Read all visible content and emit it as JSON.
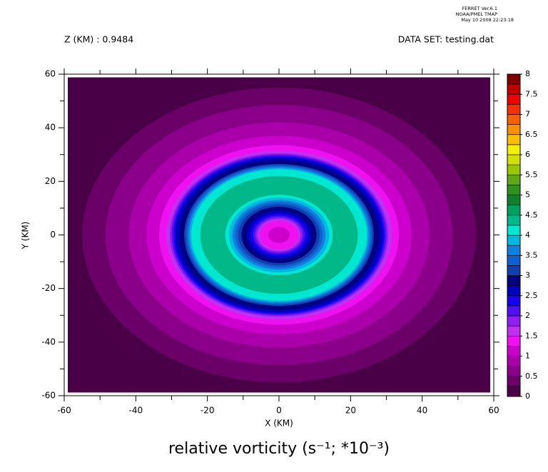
{
  "chart_data": {
    "type": "contour",
    "header": [
      "FERRET  Ver.6.1",
      "NOAA/PMEL TMAP",
      "May 10 2008 22:23:18"
    ],
    "subtitle_left": "Z (KM) : 0.9484",
    "subtitle_right": "DATA SET: testing.dat",
    "title": "relative vorticity (s⁻¹; *10⁻³)",
    "xlabel": "X (KM)",
    "ylabel": "Y (KM)",
    "xlim": [
      -60,
      60
    ],
    "ylim": [
      -60,
      60
    ],
    "xticks": [
      -60,
      -40,
      -20,
      0,
      20,
      40,
      60
    ],
    "yticks": [
      -60,
      -40,
      -20,
      0,
      20,
      40,
      60
    ],
    "levels": [
      0,
      0.25,
      0.5,
      0.75,
      1,
      1.25,
      1.5,
      1.75,
      2,
      2.25,
      2.5,
      2.75,
      3,
      3.25,
      3.5,
      3.75,
      4,
      4.25,
      4.5,
      4.75,
      5,
      5.25,
      5.5,
      5.75,
      6,
      6.25,
      6.5,
      6.75,
      7,
      7.25,
      7.5,
      7.75,
      8
    ],
    "colors": [
      "#4a0046",
      "#6a0068",
      "#8a0088",
      "#aa00aa",
      "#cc00cc",
      "#ee10ee",
      "#c030f0",
      "#9020f0",
      "#5010f0",
      "#1800f0",
      "#0000c0",
      "#000080",
      "#1040b0",
      "#1060d0",
      "#1080e0",
      "#00b8e0",
      "#00e8d0",
      "#00b888",
      "#00a060",
      "#108030",
      "#309020",
      "#60a818",
      "#98c800",
      "#d0e000",
      "#f0f000",
      "#f8c000",
      "#f89000",
      "#f86000",
      "#f83000",
      "#f00000",
      "#c00000",
      "#800000"
    ],
    "colorbar_ticks": [
      0,
      0.5,
      1,
      1.5,
      2,
      2.5,
      3,
      3.5,
      4,
      4.5,
      5,
      5.5,
      6,
      6.5,
      7,
      7.5,
      8
    ],
    "rings": [
      {
        "radius": 85,
        "value": 0
      },
      {
        "radius": 55,
        "value": 0.25
      },
      {
        "radius": 48.5,
        "value": 0.5
      },
      {
        "radius": 42,
        "value": 0.75
      },
      {
        "radius": 37,
        "value": 1
      },
      {
        "radius": 33.5,
        "value": 1.25
      },
      {
        "radius": 31.5,
        "value": 1.5
      },
      {
        "radius": 30.5,
        "value": 1.75
      },
      {
        "radius": 30,
        "value": 2
      },
      {
        "radius": 29.5,
        "value": 2.25
      },
      {
        "radius": 29,
        "value": 2.5
      },
      {
        "radius": 28,
        "value": 2.75
      },
      {
        "radius": 26.5,
        "value": 3
      },
      {
        "radius": 26,
        "value": 3.25
      },
      {
        "radius": 25.5,
        "value": 3.5
      },
      {
        "radius": 25,
        "value": 3.75
      },
      {
        "radius": 24.5,
        "value": 4
      },
      {
        "radius": 22,
        "value": 4.25
      },
      {
        "radius": 15,
        "value": 4
      },
      {
        "radius": 14,
        "value": 3.75
      },
      {
        "radius": 13,
        "value": 3.5
      },
      {
        "radius": 12.2,
        "value": 3.25
      },
      {
        "radius": 11.4,
        "value": 3
      },
      {
        "radius": 10.5,
        "value": 2.75
      },
      {
        "radius": 9,
        "value": 2.5
      },
      {
        "radius": 8,
        "value": 2.25
      },
      {
        "radius": 7.2,
        "value": 2
      },
      {
        "radius": 6.6,
        "value": 1.75
      },
      {
        "radius": 6,
        "value": 1.5
      },
      {
        "radius": 5.4,
        "value": 1.25
      },
      {
        "radius": 3,
        "value": 1
      }
    ]
  }
}
